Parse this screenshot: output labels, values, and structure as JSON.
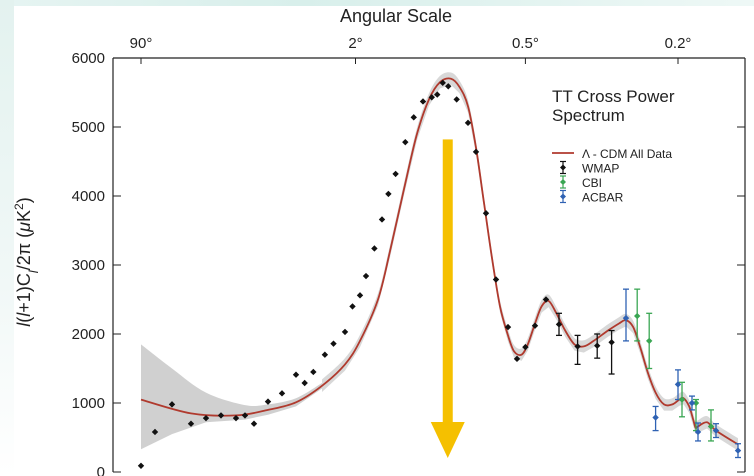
{
  "chart_data": {
    "type": "line",
    "title": "TT Cross Power Spectrum",
    "top_axis_label": "Angular Scale",
    "top_ticks": [
      "90°",
      "2°",
      "0.5°",
      "0.2°"
    ],
    "ylabel": "l(l+1)C_l/2π (μK²)",
    "ylim": [
      0,
      6000
    ],
    "yticks": [
      0,
      1000,
      2000,
      3000,
      4000,
      5000,
      6000
    ],
    "y_tick_labels": [
      "0",
      "1000",
      "2000",
      "3000",
      "4000",
      "5000",
      "6000"
    ],
    "legend_placement": "right",
    "colors": {
      "model": "#b03a2e",
      "band": "#c8c8c8",
      "wmap": "#111111",
      "cbi": "#3aa653",
      "acbar": "#2f62b3",
      "arrow": "#f5c000"
    },
    "series": [
      {
        "name": "Λ - CDM All Data",
        "kind": "line",
        "points": [
          [
            2,
            1050
          ],
          [
            5,
            850
          ],
          [
            8,
            820
          ],
          [
            12,
            900
          ],
          [
            16,
            1010
          ],
          [
            22,
            1250
          ],
          [
            30,
            1560
          ],
          [
            40,
            1900
          ],
          [
            55,
            2500
          ],
          [
            70,
            3200
          ],
          [
            90,
            4100
          ],
          [
            110,
            4900
          ],
          [
            130,
            5400
          ],
          [
            150,
            5650
          ],
          [
            170,
            5700
          ],
          [
            185,
            5580
          ],
          [
            200,
            5300
          ],
          [
            220,
            4700
          ],
          [
            240,
            3900
          ],
          [
            260,
            3100
          ],
          [
            280,
            2400
          ],
          [
            300,
            1980
          ],
          [
            320,
            1750
          ],
          [
            345,
            1700
          ],
          [
            370,
            1850
          ],
          [
            400,
            2150
          ],
          [
            430,
            2400
          ],
          [
            460,
            2480
          ],
          [
            490,
            2300
          ],
          [
            520,
            2050
          ],
          [
            550,
            1850
          ],
          [
            580,
            1820
          ],
          [
            610,
            1900
          ],
          [
            650,
            2050
          ],
          [
            680,
            2150
          ],
          [
            700,
            2200
          ],
          [
            730,
            2100
          ],
          [
            760,
            1800
          ],
          [
            790,
            1450
          ],
          [
            820,
            1150
          ],
          [
            850,
            980
          ],
          [
            880,
            980
          ],
          [
            910,
            1050
          ],
          [
            940,
            1070
          ],
          [
            980,
            950
          ],
          [
            1020,
            760
          ],
          [
            1060,
            640
          ],
          [
            1100,
            660
          ],
          [
            1150,
            720
          ],
          [
            1200,
            600
          ],
          [
            1300,
            400
          ]
        ]
      },
      {
        "name": "WMAP",
        "kind": "points",
        "points": [
          [
            2,
            90
          ],
          [
            3,
            580
          ],
          [
            4,
            980
          ],
          [
            5,
            700
          ],
          [
            6,
            780
          ],
          [
            7,
            820
          ],
          [
            8,
            780
          ],
          [
            9,
            820
          ],
          [
            10,
            700
          ],
          [
            12,
            1020
          ],
          [
            14,
            1140
          ],
          [
            16,
            1410
          ],
          [
            18,
            1290
          ],
          [
            20,
            1450
          ],
          [
            23,
            1700
          ],
          [
            26,
            1860
          ],
          [
            30,
            2030
          ],
          [
            35,
            2400
          ],
          [
            40,
            2560
          ],
          [
            45,
            2840
          ],
          [
            52,
            3240
          ],
          [
            60,
            3660
          ],
          [
            68,
            4030
          ],
          [
            78,
            4320
          ],
          [
            92,
            4780
          ],
          [
            105,
            5140
          ],
          [
            120,
            5370
          ],
          [
            135,
            5430
          ],
          [
            145,
            5470
          ],
          [
            155,
            5640
          ],
          [
            165,
            5590
          ],
          [
            180,
            5400
          ],
          [
            200,
            5060
          ],
          [
            220,
            4640
          ],
          [
            245,
            3750
          ],
          [
            270,
            2790
          ],
          [
            300,
            2100
          ],
          [
            330,
            1640
          ],
          [
            360,
            1810
          ],
          [
            400,
            2120
          ],
          [
            450,
            2500
          ],
          [
            500,
            2140
          ],
          [
            560,
            1820
          ],
          [
            620,
            1830
          ],
          [
            660,
            1880
          ]
        ]
      },
      {
        "name": "CBI",
        "kind": "points",
        "points": [
          [
            730,
            2260
          ],
          [
            780,
            1900
          ],
          [
            900,
            1050
          ],
          [
            1000,
            1000
          ],
          [
            1150,
            660
          ]
        ]
      },
      {
        "name": "ACBAR",
        "kind": "points",
        "points": [
          [
            700,
            2230
          ],
          [
            820,
            790
          ],
          [
            900,
            1270
          ],
          [
            1000,
            1000
          ],
          [
            1100,
            580
          ],
          [
            1200,
            600
          ],
          [
            1300,
            310
          ]
        ]
      }
    ],
    "uncertainty_band": {
      "upper": [
        [
          2,
          1850
        ],
        [
          4,
          1500
        ],
        [
          6,
          1150
        ],
        [
          9,
          970
        ],
        [
          12,
          980
        ],
        [
          16,
          1070
        ],
        [
          22,
          1290
        ]
      ],
      "lower": [
        [
          2,
          330
        ],
        [
          4,
          550
        ],
        [
          6,
          720
        ],
        [
          9,
          760
        ],
        [
          12,
          830
        ],
        [
          16,
          950
        ],
        [
          22,
          1210
        ]
      ]
    },
    "error_bars": {
      "WMAP": [
        [
          500,
          1980,
          2300
        ],
        [
          560,
          1560,
          1980
        ],
        [
          620,
          1650,
          2000
        ],
        [
          660,
          1420,
          2050
        ]
      ],
      "CBI": [
        [
          730,
          1900,
          2650
        ],
        [
          780,
          1500,
          2300
        ],
        [
          900,
          800,
          1300
        ],
        [
          1000,
          600,
          1050
        ],
        [
          1150,
          450,
          900
        ]
      ],
      "ACBAR": [
        [
          700,
          1900,
          2650
        ],
        [
          820,
          600,
          950
        ],
        [
          900,
          1050,
          1480
        ],
        [
          1000,
          900,
          1100
        ],
        [
          1100,
          450,
          710
        ],
        [
          1200,
          500,
          700
        ],
        [
          1300,
          210,
          410
        ]
      ]
    },
    "annotation": {
      "kind": "down-arrow",
      "l": 155,
      "y_from": 4820,
      "y_to": 0
    }
  }
}
